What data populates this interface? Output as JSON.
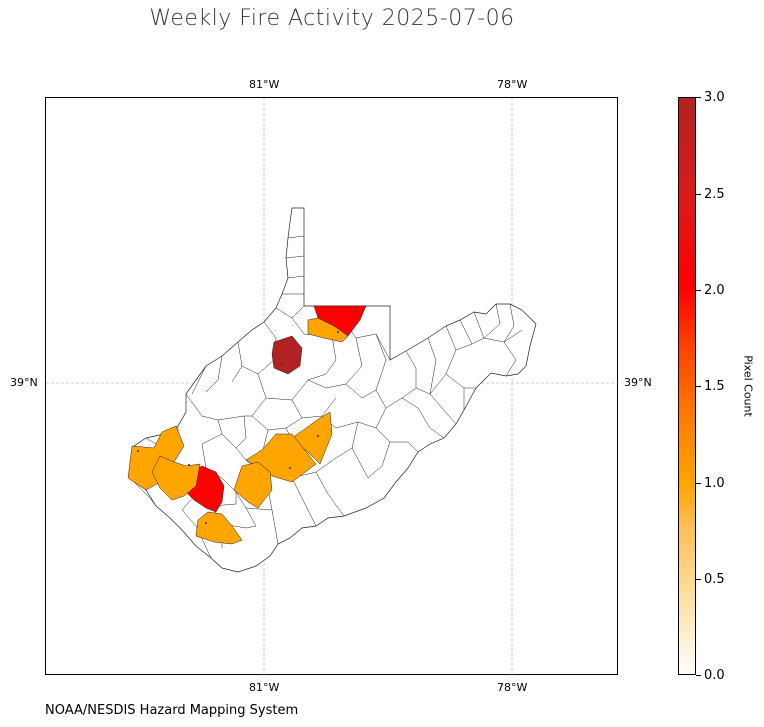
{
  "title": "Weekly Fire Activity 2025-07-06",
  "source": "NOAA/NESDIS Hazard Mapping System",
  "graticule": {
    "lon_ticks": [
      "81°W",
      "78°W"
    ],
    "lat_ticks": [
      "39°N"
    ]
  },
  "colorbar": {
    "label": "Pixel Count",
    "ticks": [
      "0.0",
      "0.5",
      "1.0",
      "1.5",
      "2.0",
      "2.5",
      "3.0"
    ],
    "range": [
      0,
      3
    ],
    "colors": {
      "low": "#ffffff",
      "mid": "#ffa500",
      "high": "#ff0000",
      "max": "#b22222"
    }
  },
  "map_data": {
    "region": "West Virginia counties",
    "colors": {
      "1": "#ffa500",
      "2": "#ff0000",
      "3": "#b22222"
    },
    "fire_counties_pixel_count": [
      3,
      2,
      2,
      1,
      1,
      1,
      1,
      1,
      1,
      1,
      1
    ]
  }
}
